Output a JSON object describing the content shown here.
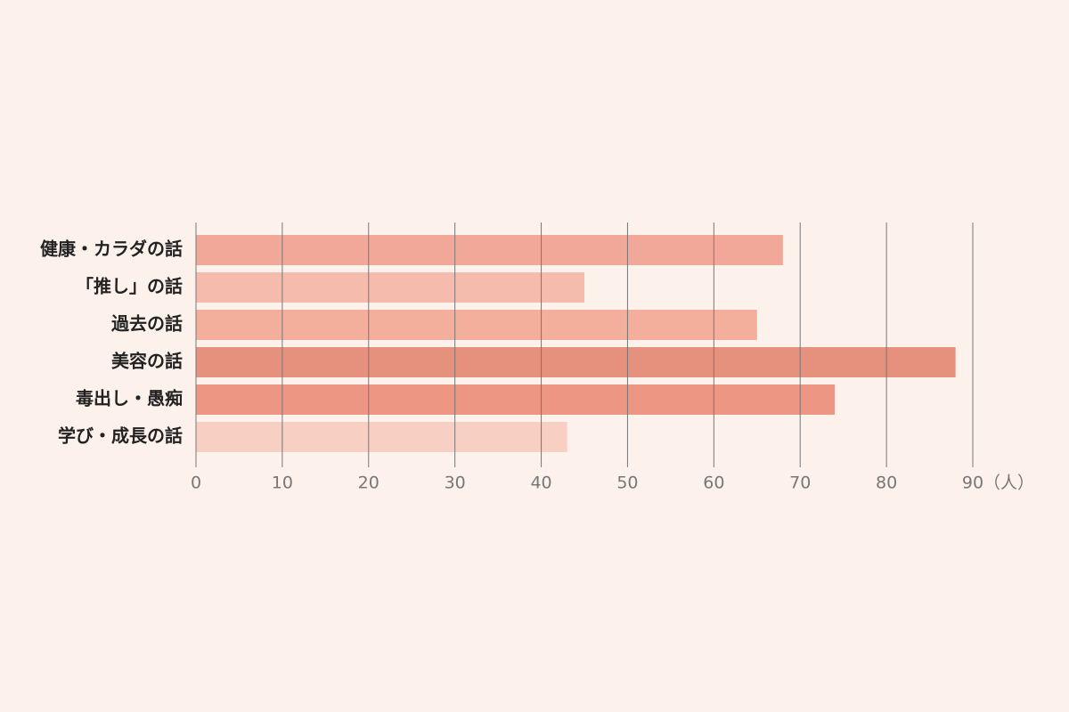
{
  "chart_data": {
    "type": "bar",
    "orientation": "horizontal",
    "categories": [
      "健康・カラダの話",
      "「推し」の話",
      "過去の話",
      "美容の話",
      "毒出し・愚痴",
      "学び・成長の話"
    ],
    "values": [
      68,
      45,
      65,
      88,
      74,
      43
    ],
    "colors": [
      "#f2a898",
      "#f5bcae",
      "#f3ae9c",
      "#e6907e",
      "#ed9684",
      "#f8cfc3"
    ],
    "xlim": [
      0,
      90
    ],
    "xticks": [
      0,
      10,
      20,
      30,
      40,
      50,
      60,
      70,
      80,
      90
    ],
    "xlabel": "（人）",
    "grid": true
  }
}
